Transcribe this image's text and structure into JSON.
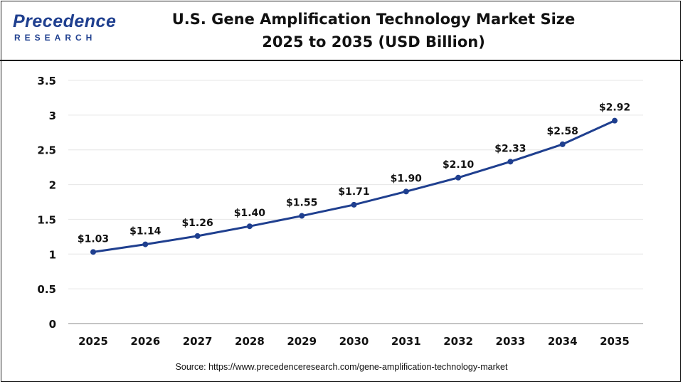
{
  "brand": {
    "name": "Precedence",
    "sub": "RESEARCH"
  },
  "header": {
    "title_line1": "U.S. Gene Amplification Technology Market Size",
    "title_line2": "2025 to 2035 (USD Billion)"
  },
  "source": "Source: https://www.precedenceresearch.com/gene-amplification-technology-market",
  "colors": {
    "line": "#1f3f8f",
    "text": "#111111",
    "grid": "#e6e6e6",
    "axis": "#8a8a8a"
  },
  "chart_data": {
    "type": "line",
    "title": "U.S. Gene Amplification Technology Market Size 2025 to 2035 (USD Billion)",
    "x": [
      "2025",
      "2026",
      "2027",
      "2028",
      "2029",
      "2030",
      "2031",
      "2032",
      "2033",
      "2034",
      "2035"
    ],
    "series": [
      {
        "values": [
          1.03,
          1.14,
          1.26,
          1.4,
          1.55,
          1.71,
          1.9,
          2.1,
          2.33,
          2.58,
          2.92
        ]
      }
    ],
    "data_labels": [
      "$1.03",
      "$1.14",
      "$1.26",
      "$1.40",
      "$1.55",
      "$1.71",
      "$1.90",
      "$2.10",
      "$2.33",
      "$2.58",
      "$2.92"
    ],
    "y_ticks": [
      "0",
      "0.5",
      "1",
      "1.5",
      "2",
      "2.5",
      "3",
      "3.5"
    ],
    "ylim": [
      0,
      3.5
    ],
    "grid": true,
    "legend": "none",
    "xlabel": "",
    "ylabel": ""
  }
}
